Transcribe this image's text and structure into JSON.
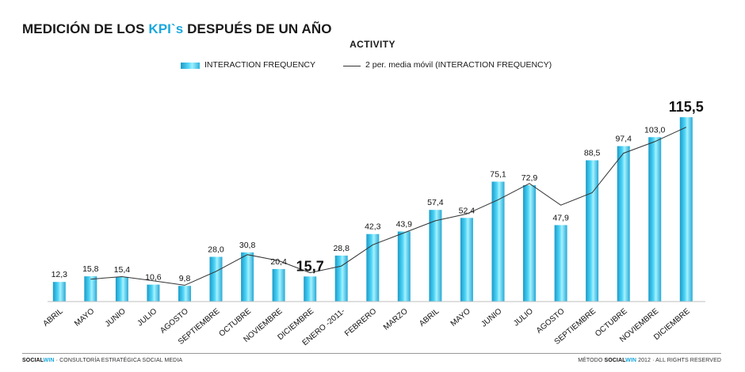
{
  "page": {
    "title_prefix": "MEDICIÓN DE LOS ",
    "title_accent": "KPI`s",
    "title_suffix": " DESPUÉS DE UN AÑO",
    "accent_color": "#1aa7dd"
  },
  "footer": {
    "left_brand_a": "SOCIAL",
    "left_brand_b": "WIN",
    "left_text": " · CONSULTORÍA ESTRATÉGICA SOCIAL MEDIA",
    "right_prefix": "MÉTODO ",
    "right_brand_a": "SOCIAL",
    "right_brand_b": "WIN",
    "right_suffix": " 2012 · ALL RIGHTS RESERVED"
  },
  "chart_data": {
    "type": "bar",
    "title": "ACTIVITY",
    "legend_placement": "top",
    "grid": false,
    "bar_color": "#35c6ee",
    "line_color": "#333333",
    "categories": [
      "ABRIL",
      "MAYO",
      "JUNIO",
      "JULIO",
      "AGOSTO",
      "SEPTIEMBRE",
      "OCTUBRE",
      "NOVIEMBRE",
      "DICIEMBRE",
      "ENERO -2011-",
      "FEBRERO",
      "MARZO",
      "ABRIL",
      "MAYO",
      "JUNIO",
      "JULIO",
      "AGOSTO",
      "SEPTIEMBRE",
      "OCTUBRE",
      "NOVIEMBRE",
      "DICIEMBRE"
    ],
    "ylim": [
      0,
      120
    ],
    "series": [
      {
        "name": "INTERACTION FREQUENCY",
        "kind": "bar",
        "values": [
          12.3,
          15.8,
          15.4,
          10.6,
          9.8,
          28.0,
          30.8,
          20.4,
          15.7,
          28.8,
          42.3,
          43.9,
          57.4,
          52.4,
          75.1,
          72.9,
          47.9,
          88.5,
          97.4,
          103.0,
          115.5
        ],
        "labels": [
          "12,3",
          "15,8",
          "15,4",
          "10,6",
          "9,8",
          "28,0",
          "30,8",
          "20,4",
          "15,7",
          "28,8",
          "42,3",
          "43,9",
          "57,4",
          "52,4",
          "75,1",
          "72,9",
          "47,9",
          "88,5",
          "97,4",
          "103,0",
          "115,5"
        ],
        "highlighted_labels": [
          8,
          20
        ]
      },
      {
        "name": "2 per. media móvil (INTERACTION FREQUENCY)",
        "kind": "line",
        "values": [
          null,
          14.05,
          15.6,
          13.0,
          10.2,
          18.9,
          29.4,
          25.6,
          18.05,
          22.25,
          35.55,
          43.1,
          50.65,
          54.9,
          63.75,
          74.0,
          60.4,
          68.2,
          92.95,
          100.2,
          109.25
        ]
      }
    ]
  }
}
